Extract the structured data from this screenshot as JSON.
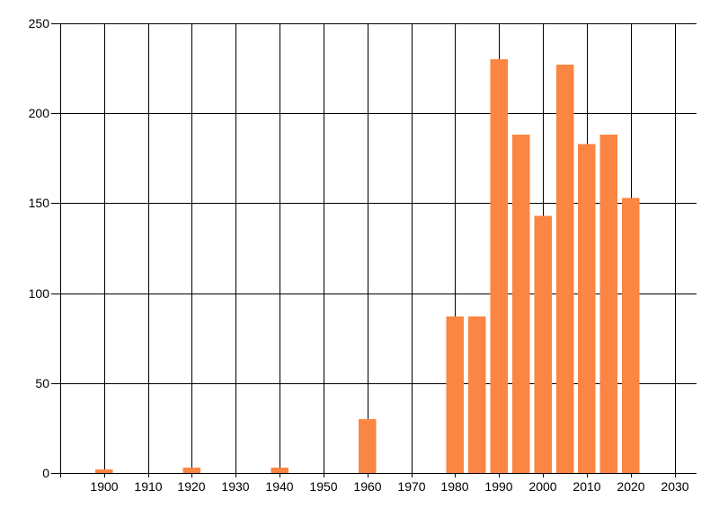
{
  "chart_data": {
    "type": "bar",
    "title": "",
    "xlabel": "",
    "ylabel": "",
    "x": [
      1900,
      1920,
      1940,
      1960,
      1980,
      1985,
      1990,
      1995,
      2000,
      2005,
      2010,
      2015,
      2020
    ],
    "values": [
      2,
      3,
      3,
      30,
      87,
      87,
      230,
      188,
      143,
      227,
      183,
      188,
      153
    ],
    "x_ticks": [
      1900,
      1910,
      1920,
      1930,
      1940,
      1950,
      1960,
      1970,
      1980,
      1990,
      2000,
      2010,
      2020,
      2030
    ],
    "y_ticks": [
      0,
      50,
      100,
      150,
      200,
      250
    ],
    "xlim": [
      1890,
      2035
    ],
    "ylim": [
      0,
      250
    ],
    "grid": true,
    "legend": false,
    "bar_width_years": 4,
    "bar_color": "#FB8542",
    "grid_color": "#000000",
    "axis_color": "#000000",
    "text_color": "#000000",
    "background_color": "#FFFFFF"
  }
}
